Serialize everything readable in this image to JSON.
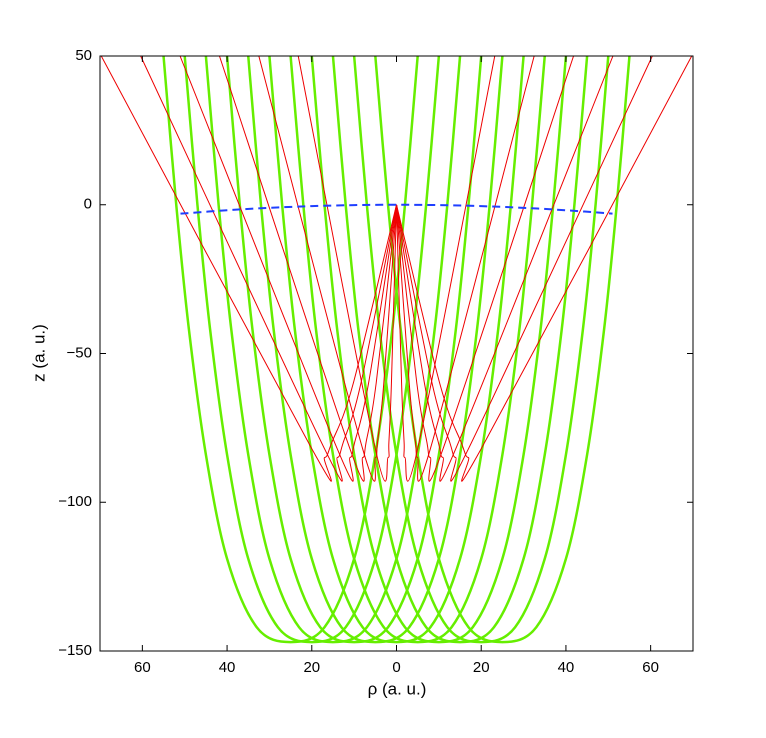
{
  "chart_data": {
    "type": "line",
    "xlabel": "ρ (a. u.)",
    "ylabel": "z (a. u.)",
    "xlim": [
      -70,
      70
    ],
    "xticks": [
      {
        "value": -60,
        "label": "60"
      },
      {
        "value": -40,
        "label": "40"
      },
      {
        "value": -20,
        "label": "20"
      },
      0,
      {
        "value": 20,
        "label": "20"
      },
      {
        "value": 40,
        "label": "40"
      },
      {
        "value": 60,
        "label": "60"
      }
    ],
    "ylim": [
      -150,
      50
    ],
    "yticks": [
      {
        "value": -150,
        "label": "−150"
      },
      {
        "value": -100,
        "label": "−100"
      },
      {
        "value": -50,
        "label": "−50"
      },
      0,
      50
    ],
    "grid": false,
    "series": [
      {
        "color": "#66ee00",
        "linewidth": 2.5,
        "style": "solid",
        "x": [
          -55,
          -52,
          -49,
          -45,
          -40,
          -33,
          -25,
          -17,
          -10,
          -5,
          -1,
          2,
          5
        ],
        "values": [
          50,
          0,
          -42,
          -84,
          -119,
          -142,
          -147,
          -142,
          -119,
          -84,
          -42,
          0,
          50
        ]
      },
      {
        "color": "#66ee00",
        "linewidth": 2.5,
        "style": "solid",
        "x": [
          -50,
          -47,
          -44,
          -40,
          -35,
          -28,
          -20,
          -12,
          -5,
          0,
          4,
          7,
          10
        ],
        "values": [
          50,
          0,
          -42,
          -84,
          -119,
          -142,
          -147,
          -142,
          -119,
          -84,
          -42,
          0,
          50
        ]
      },
      {
        "color": "#66ee00",
        "linewidth": 2.5,
        "style": "solid",
        "x": [
          -45,
          -42,
          -39,
          -35,
          -30,
          -23,
          -15,
          -7,
          0,
          5,
          9,
          12,
          15
        ],
        "values": [
          50,
          0,
          -42,
          -84,
          -119,
          -142,
          -147,
          -142,
          -119,
          -84,
          -42,
          0,
          50
        ]
      },
      {
        "color": "#66ee00",
        "linewidth": 2.5,
        "style": "solid",
        "x": [
          -40,
          -37,
          -34,
          -30,
          -25,
          -18,
          -10,
          -2,
          5,
          10,
          14,
          17,
          20
        ],
        "values": [
          50,
          0,
          -42,
          -84,
          -119,
          -142,
          -147,
          -142,
          -119,
          -84,
          -42,
          0,
          50
        ]
      },
      {
        "color": "#66ee00",
        "linewidth": 2.5,
        "style": "solid",
        "x": [
          -35,
          -32,
          -29,
          -25,
          -20,
          -13,
          -5,
          3,
          10,
          15,
          19,
          22,
          25
        ],
        "values": [
          50,
          0,
          -42,
          -84,
          -119,
          -142,
          -147,
          -142,
          -119,
          -84,
          -42,
          0,
          50
        ]
      },
      {
        "color": "#66ee00",
        "linewidth": 2.5,
        "style": "solid",
        "x": [
          -30,
          -27,
          -24,
          -20,
          -15,
          -8,
          0,
          8,
          15,
          20,
          24,
          27,
          30
        ],
        "values": [
          50,
          0,
          -42,
          -84,
          -119,
          -142,
          -147,
          -142,
          -119,
          -84,
          -42,
          0,
          50
        ]
      },
      {
        "color": "#66ee00",
        "linewidth": 2.5,
        "style": "solid",
        "x": [
          -25,
          -22,
          -19,
          -15,
          -10,
          -3,
          5,
          13,
          20,
          25,
          29,
          32,
          35
        ],
        "values": [
          50,
          0,
          -42,
          -84,
          -119,
          -142,
          -147,
          -142,
          -119,
          -84,
          -42,
          0,
          50
        ]
      },
      {
        "color": "#66ee00",
        "linewidth": 2.5,
        "style": "solid",
        "x": [
          -20,
          -17,
          -14,
          -10,
          -5,
          2,
          10,
          18,
          25,
          30,
          34,
          37,
          40
        ],
        "values": [
          50,
          0,
          -42,
          -84,
          -119,
          -142,
          -147,
          -142,
          -119,
          -84,
          -42,
          0,
          50
        ]
      },
      {
        "color": "#66ee00",
        "linewidth": 2.5,
        "style": "solid",
        "x": [
          -15,
          -12,
          -9,
          -5,
          0,
          7,
          15,
          23,
          30,
          35,
          39,
          42,
          45
        ],
        "values": [
          50,
          0,
          -42,
          -84,
          -119,
          -142,
          -147,
          -142,
          -119,
          -84,
          -42,
          0,
          50
        ]
      },
      {
        "color": "#66ee00",
        "linewidth": 2.5,
        "style": "solid",
        "x": [
          -10,
          -7,
          -4,
          0,
          5,
          12,
          20,
          28,
          35,
          40,
          44,
          47,
          50
        ],
        "values": [
          50,
          0,
          -42,
          -84,
          -119,
          -142,
          -147,
          -142,
          -119,
          -84,
          -42,
          0,
          50
        ]
      },
      {
        "color": "#66ee00",
        "linewidth": 2.5,
        "style": "solid",
        "x": [
          -5,
          -2,
          1,
          5,
          10,
          17,
          25,
          33,
          40,
          45,
          49,
          52,
          55
        ],
        "values": [
          50,
          0,
          -42,
          -84,
          -119,
          -142,
          -147,
          -142,
          -119,
          -84,
          -42,
          0,
          50
        ]
      },
      {
        "color": "#ee0000",
        "linewidth": 1,
        "style": "solid",
        "x": [
          0,
          -1.2,
          -1.8,
          -2,
          -5,
          -23.2
        ],
        "values": [
          0,
          -60,
          -80,
          -85,
          -82,
          50
        ]
      },
      {
        "color": "#ee0000",
        "linewidth": 1,
        "style": "solid",
        "x": [
          0,
          -3,
          -4.5,
          -5,
          -8,
          -32.5
        ],
        "values": [
          0,
          -60,
          -80,
          -85,
          -82,
          50
        ]
      },
      {
        "color": "#ee0000",
        "linewidth": 1,
        "style": "solid",
        "x": [
          0,
          -4.8,
          -7.2,
          -8,
          -11,
          -41.8
        ],
        "values": [
          0,
          -60,
          -80,
          -85,
          -82,
          50
        ]
      },
      {
        "color": "#ee0000",
        "linewidth": 1,
        "style": "solid",
        "x": [
          0,
          -6.6,
          -9.9,
          -11,
          -14,
          -51.1
        ],
        "values": [
          0,
          -60,
          -80,
          -85,
          -82,
          50
        ]
      },
      {
        "color": "#ee0000",
        "linewidth": 1,
        "style": "solid",
        "x": [
          0,
          -8.4,
          -12.6,
          -14,
          -17,
          -60.4
        ],
        "values": [
          0,
          -60,
          -80,
          -85,
          -82,
          50
        ]
      },
      {
        "color": "#ee0000",
        "linewidth": 1,
        "style": "solid",
        "x": [
          0,
          -10.2,
          -15.3,
          -17,
          -20,
          -69.7
        ],
        "values": [
          0,
          -60,
          -80,
          -85,
          -82,
          50
        ]
      },
      {
        "color": "#ee0000",
        "linewidth": 1,
        "style": "solid",
        "x": [
          0,
          1.2,
          1.8,
          2,
          5,
          23.2
        ],
        "values": [
          0,
          -60,
          -80,
          -85,
          -82,
          50
        ]
      },
      {
        "color": "#ee0000",
        "linewidth": 1,
        "style": "solid",
        "x": [
          0,
          3,
          4.5,
          5,
          8,
          32.5
        ],
        "values": [
          0,
          -60,
          -80,
          -85,
          -82,
          50
        ]
      },
      {
        "color": "#ee0000",
        "linewidth": 1,
        "style": "solid",
        "x": [
          0,
          4.8,
          7.2,
          8,
          11,
          41.8
        ],
        "values": [
          0,
          -60,
          -80,
          -85,
          -82,
          50
        ]
      },
      {
        "color": "#ee0000",
        "linewidth": 1,
        "style": "solid",
        "x": [
          0,
          6.6,
          9.9,
          11,
          14,
          51.1
        ],
        "values": [
          0,
          -60,
          -80,
          -85,
          -82,
          50
        ]
      },
      {
        "color": "#ee0000",
        "linewidth": 1,
        "style": "solid",
        "x": [
          0,
          8.4,
          12.6,
          14,
          17,
          60.4
        ],
        "values": [
          0,
          -60,
          -80,
          -85,
          -82,
          50
        ]
      },
      {
        "color": "#ee0000",
        "linewidth": 1,
        "style": "solid",
        "x": [
          0,
          10.2,
          15.3,
          17,
          20,
          69.7
        ],
        "values": [
          0,
          -60,
          -80,
          -85,
          -82,
          50
        ]
      },
      {
        "color": "#1f3fff",
        "linewidth": 2,
        "style": "dashed",
        "x": [
          -51,
          -40,
          -30,
          -20,
          -10,
          0,
          10,
          20,
          30,
          40,
          51
        ],
        "values": [
          -3,
          -1.85,
          -1.04,
          -0.46,
          -0.12,
          0,
          -0.12,
          -0.46,
          -1.04,
          -1.85,
          -3
        ]
      }
    ]
  }
}
